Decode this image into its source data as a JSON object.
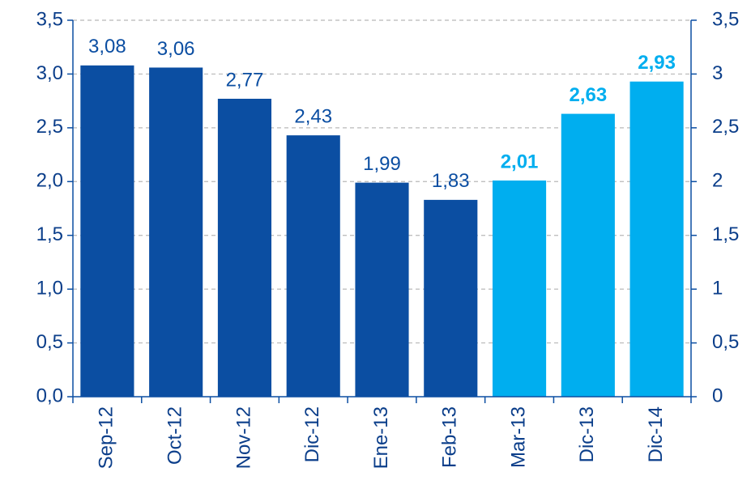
{
  "chart_data": {
    "type": "bar",
    "categories": [
      "Sep-12",
      "Oct-12",
      "Nov-12",
      "Dic-12",
      "Ene-13",
      "Feb-13",
      "Mar-13",
      "Dic-13",
      "Dic-14"
    ],
    "values": [
      3.08,
      3.06,
      2.77,
      2.43,
      1.99,
      1.83,
      2.01,
      2.63,
      2.93
    ],
    "value_labels": [
      "3,08",
      "3,06",
      "2,77",
      "2,43",
      "1,99",
      "1,83",
      "2,01",
      "2,63",
      "2,93"
    ],
    "colors": [
      "#0b4ea2",
      "#0b4ea2",
      "#0b4ea2",
      "#0b4ea2",
      "#0b4ea2",
      "#0b4ea2",
      "#00aeef",
      "#00aeef",
      "#00aeef"
    ],
    "value_label_weights": [
      "normal",
      "normal",
      "normal",
      "normal",
      "normal",
      "normal",
      "bold",
      "bold",
      "bold"
    ],
    "axis_color": "#0b4ea2",
    "ylim": [
      0,
      3.5
    ],
    "yticks": [
      {
        "value": 0,
        "label": "0,0"
      },
      {
        "value": 0.5,
        "label": "0,5"
      },
      {
        "value": 1,
        "label": "1,0"
      },
      {
        "value": 1.5,
        "label": "1,5"
      },
      {
        "value": 2,
        "label": "2,0"
      },
      {
        "value": 2.5,
        "label": "2,5"
      },
      {
        "value": 3,
        "label": "3,0"
      },
      {
        "value": 3.5,
        "label": "3,5"
      }
    ],
    "y2lim": [
      0,
      3.5
    ],
    "y2ticks": [
      0,
      {
        "value": 0.5,
        "label": "0,5"
      },
      1,
      {
        "value": 1.5,
        "label": "1,5"
      },
      2,
      {
        "value": 2.5,
        "label": "2,5"
      },
      3,
      {
        "value": 3.5,
        "label": "3,5"
      }
    ],
    "grid": true
  }
}
